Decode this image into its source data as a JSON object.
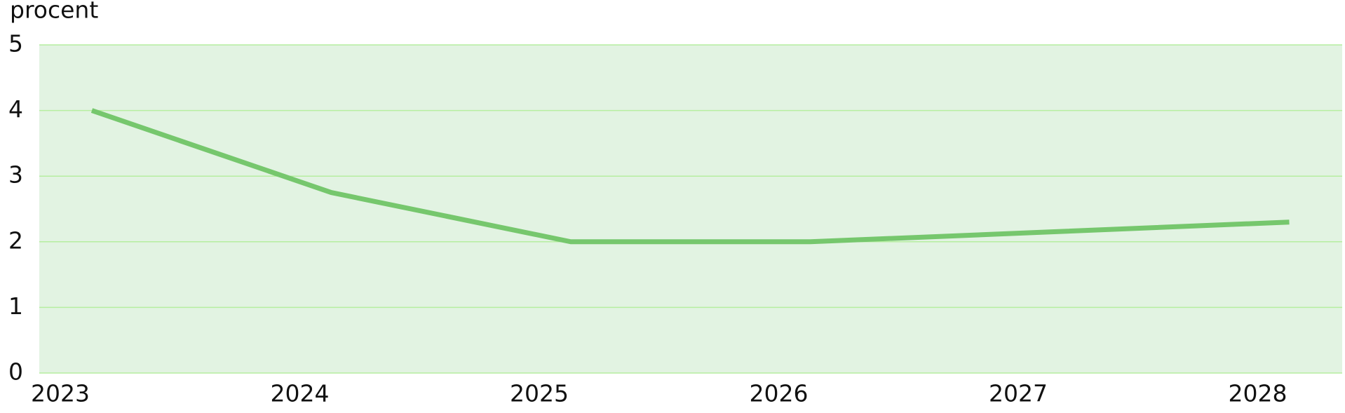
{
  "chart_data": {
    "type": "line",
    "y_label": "procent",
    "categories": [
      "2023",
      "2024",
      "2025",
      "2026",
      "2027",
      "2028"
    ],
    "values": [
      4.0,
      2.75,
      2.0,
      2.0,
      2.15,
      2.3
    ],
    "color": "#76c76d",
    "ylim": [
      0,
      5
    ],
    "yticks": [
      0,
      1,
      2,
      3,
      4,
      5
    ],
    "grid": true
  }
}
